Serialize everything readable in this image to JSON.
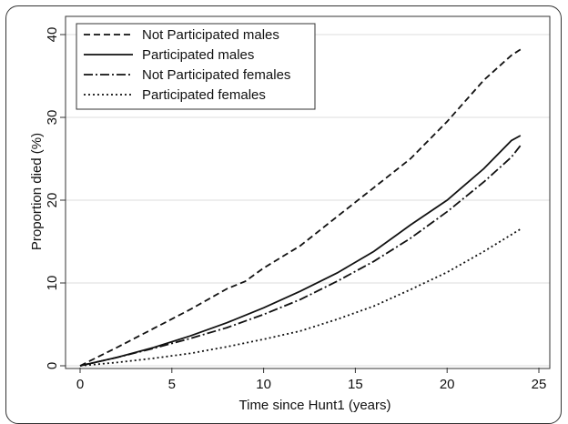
{
  "chart_data": {
    "type": "line",
    "title": "",
    "xlabel": "Time since Hunt1 (years)",
    "ylabel": "Proportion died (%)",
    "xlim": [
      0,
      25
    ],
    "ylim": [
      0,
      40
    ],
    "x_ticks": [
      0,
      5,
      10,
      15,
      20,
      25
    ],
    "y_ticks": [
      0,
      10,
      20,
      30,
      40
    ],
    "grid": "horizontal",
    "legend_position": "top-left",
    "series": [
      {
        "name": "Not Participated males",
        "style": "dashed",
        "color": "#111111",
        "x": [
          0,
          2,
          4,
          6,
          8,
          9,
          10,
          12,
          14,
          16,
          18,
          20,
          22,
          23.5,
          24
        ],
        "y": [
          0,
          2.2,
          4.5,
          6.8,
          9.3,
          10.2,
          11.8,
          14.5,
          18,
          21.5,
          25,
          29.5,
          34.5,
          37.5,
          38.2
        ]
      },
      {
        "name": "Participated males",
        "style": "solid",
        "color": "#111111",
        "x": [
          0,
          2,
          4,
          6,
          8,
          10,
          12,
          14,
          16,
          18,
          20,
          22,
          23.5,
          24
        ],
        "y": [
          0,
          1,
          2.2,
          3.6,
          5.2,
          7,
          9,
          11.2,
          13.8,
          17,
          20,
          23.8,
          27.2,
          27.8
        ]
      },
      {
        "name": "Not Participated females",
        "style": "dashdot",
        "color": "#111111",
        "x": [
          0,
          2,
          4,
          6,
          8,
          10,
          12,
          14,
          16,
          18,
          20,
          22,
          23.5,
          24
        ],
        "y": [
          0,
          1,
          2.1,
          3.3,
          4.6,
          6.2,
          8,
          10.2,
          12.6,
          15.4,
          18.6,
          22.2,
          25.2,
          26.6
        ]
      },
      {
        "name": "Participated females",
        "style": "dotted",
        "color": "#111111",
        "x": [
          0,
          2,
          4,
          6,
          8,
          10,
          12,
          14,
          16,
          18,
          20,
          22,
          24
        ],
        "y": [
          0,
          0.4,
          0.9,
          1.5,
          2.3,
          3.2,
          4.2,
          5.6,
          7.2,
          9.2,
          11.3,
          13.8,
          16.5
        ]
      }
    ]
  }
}
